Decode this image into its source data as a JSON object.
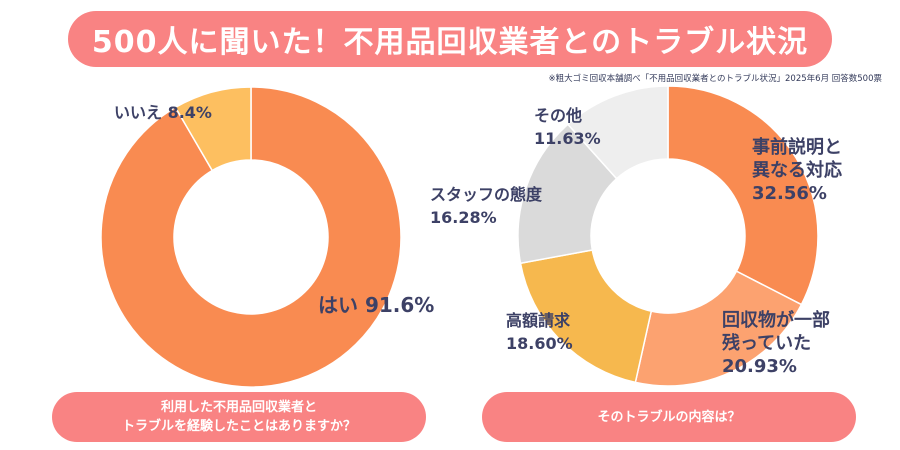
{
  "title": "500人に聞いた！不用品回収業者とのトラブル状況",
  "source_note": "※粗大ゴミ回収本舗調べ「不用品回収業者とのトラブル状況」2025年6月 回答数500票",
  "chart_data": [
    {
      "type": "pie",
      "question": [
        "利用した不用品回収業者と",
        "トラブルを経験したことはありますか？"
      ],
      "slices": [
        {
          "label": "はい",
          "value": 91.6,
          "display": "91.6%",
          "color": "#f98b51"
        },
        {
          "label": "いいえ",
          "value": 8.4,
          "display": "8.4%",
          "color": "#fdbf60"
        }
      ]
    },
    {
      "type": "pie",
      "question": [
        "そのトラブルの内容は？"
      ],
      "slices": [
        {
          "label": "事前説明と異なる対応",
          "label_lines": [
            "事前説明と",
            "異なる対応"
          ],
          "value": 32.56,
          "display": "32.56%",
          "color": "#f98b51"
        },
        {
          "label": "回収物が一部残っていた",
          "label_lines": [
            "回収物が一部",
            "残っていた"
          ],
          "value": 20.93,
          "display": "20.93%",
          "color": "#fca270"
        },
        {
          "label": "高額請求",
          "label_lines": [
            "高額請求"
          ],
          "value": 18.6,
          "display": "18.60%",
          "color": "#f6b84e"
        },
        {
          "label": "スタッフの態度",
          "label_lines": [
            "スタッフの態度"
          ],
          "value": 16.28,
          "display": "16.28%",
          "color": "#dadada"
        },
        {
          "label": "その他",
          "label_lines": [
            "その他"
          ],
          "value": 11.63,
          "display": "11.63%",
          "color": "#eeeeee"
        }
      ]
    }
  ]
}
